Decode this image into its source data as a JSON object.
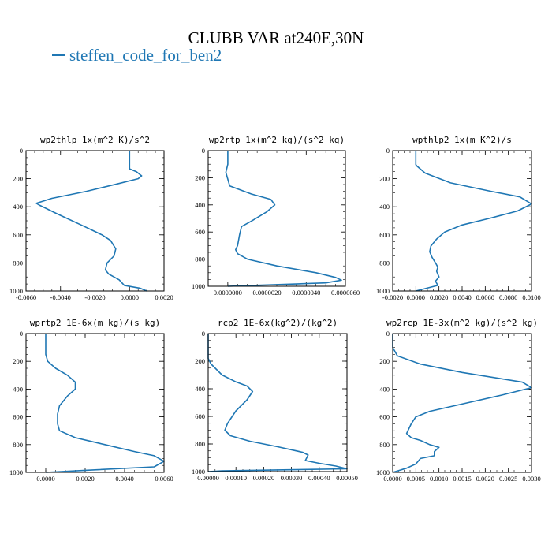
{
  "title": "CLUBB VAR at240E,30N",
  "legend_label": "steffen_code_for_ben2",
  "colors": {
    "line": "#1f77b4",
    "frame": "#000000"
  },
  "chart_data": [
    {
      "type": "line",
      "title": "wp2thlp   1x(m^2 K)/s^2",
      "xlim": [
        -0.006,
        0.002
      ],
      "ylim": [
        0,
        1000
      ],
      "xticks": [
        -0.006,
        -0.004,
        -0.002,
        0.0,
        0.002
      ],
      "xtick_labels": [
        "-0.0060",
        "-0.0040",
        "-0.0020",
        "0.0000",
        "0.0020"
      ],
      "yticks": [
        0,
        200,
        400,
        600,
        800,
        1000
      ],
      "ytick_labels": [
        "0",
        "200",
        "400",
        "600",
        "800",
        "1000"
      ],
      "x": [
        0.0,
        0.0,
        0.0,
        0.0,
        0.0004,
        0.0007,
        0.0005,
        -0.0008,
        -0.0025,
        -0.0045,
        -0.0054,
        -0.0052,
        -0.0042,
        -0.0028,
        -0.0016,
        -0.0011,
        -0.0008,
        -0.0009,
        -0.0013,
        -0.0014,
        -0.0012,
        -0.0006,
        -0.0003,
        0.0006,
        0.001
      ],
      "y": [
        0,
        50,
        100,
        130,
        150,
        180,
        200,
        240,
        290,
        340,
        375,
        390,
        450,
        530,
        600,
        640,
        700,
        750,
        800,
        850,
        880,
        920,
        960,
        980,
        1000
      ]
    },
    {
      "type": "line",
      "title": "wp2rtp   1x(m^2 kg)/(s^2 kg)",
      "xlim": [
        -1e-06,
        6e-06
      ],
      "ylim": [
        0,
        1000
      ],
      "xticks": [
        0.0,
        2e-06,
        4e-06,
        6e-06
      ],
      "xtick_labels": [
        "0.0000000",
        "0.0000020",
        "0.0000040",
        "0.0000060"
      ],
      "yticks": [
        0,
        200,
        400,
        600,
        800,
        1000
      ],
      "ytick_labels": [
        "0",
        "200",
        "400",
        "600",
        "800",
        "1000"
      ],
      "x": [
        0.0,
        0.0,
        0.0,
        -1e-07,
        1e-07,
        1.2e-06,
        2.2e-06,
        2.4e-06,
        2e-06,
        1.2e-06,
        7e-07,
        6e-07,
        5e-07,
        4e-07,
        5e-07,
        1e-06,
        2.5e-06,
        4.5e-06,
        5.5e-06,
        5.8e-06,
        5e-06,
        2e-06,
        0.0
      ],
      "y": [
        0,
        50,
        100,
        160,
        260,
        320,
        360,
        400,
        450,
        520,
        560,
        620,
        700,
        730,
        760,
        800,
        850,
        900,
        935,
        955,
        975,
        990,
        1000
      ]
    },
    {
      "type": "line",
      "title": "wpthlp2   1x(m K^2)/s",
      "xlim": [
        -0.002,
        0.01
      ],
      "ylim": [
        0,
        1000
      ],
      "xticks": [
        -0.002,
        0.0,
        0.002,
        0.004,
        0.006,
        0.008,
        0.01
      ],
      "xtick_labels": [
        "-0.0020",
        "0.0000",
        "0.0020",
        "0.0040",
        "0.0060",
        "0.0080",
        "0.0100"
      ],
      "yticks": [
        0,
        200,
        400,
        600,
        800,
        1000
      ],
      "ytick_labels": [
        "0",
        "200",
        "400",
        "600",
        "800",
        "1000"
      ],
      "x": [
        0.0,
        0.0,
        0.0,
        0.0001,
        0.0008,
        0.003,
        0.0065,
        0.009,
        0.01,
        0.0088,
        0.0065,
        0.004,
        0.0025,
        0.0018,
        0.0013,
        0.0012,
        0.0014,
        0.0017,
        0.0019,
        0.0018,
        0.002,
        0.0017,
        0.0019,
        0.0
      ],
      "y": [
        0,
        50,
        100,
        110,
        160,
        230,
        290,
        330,
        380,
        430,
        480,
        530,
        580,
        630,
        680,
        720,
        760,
        800,
        830,
        860,
        900,
        930,
        960,
        1000
      ]
    },
    {
      "type": "line",
      "title": "wprtp2   1E-6x(m kg)/(s kg)",
      "xlim": [
        -0.001,
        0.006
      ],
      "ylim": [
        0,
        1000
      ],
      "xticks": [
        0.0,
        0.002,
        0.004,
        0.006
      ],
      "xtick_labels": [
        "0.0000",
        "0.0020",
        "0.0040",
        "0.0060"
      ],
      "yticks": [
        0,
        200,
        400,
        600,
        800,
        1000
      ],
      "ytick_labels": [
        "0",
        "200",
        "400",
        "600",
        "800",
        "1000"
      ],
      "x": [
        0.0,
        0.0,
        0.0,
        0.0001,
        0.0005,
        0.0011,
        0.0015,
        0.0015,
        0.0011,
        0.0007,
        0.0006,
        0.0006,
        0.0007,
        0.0015,
        0.003,
        0.0045,
        0.0055,
        0.006,
        0.0055,
        0.002,
        0.0
      ],
      "y": [
        0,
        50,
        150,
        200,
        250,
        300,
        350,
        400,
        450,
        520,
        580,
        650,
        700,
        750,
        800,
        850,
        880,
        920,
        960,
        985,
        1000
      ]
    },
    {
      "type": "line",
      "title": "rcp2   1E-6x(kg^2)/(kg^2)",
      "xlim": [
        0.0,
        0.0005
      ],
      "ylim": [
        0,
        1000
      ],
      "xticks": [
        0.0,
        0.0001,
        0.0002,
        0.0003,
        0.0004,
        0.0005
      ],
      "xtick_labels": [
        "0.00000",
        "0.00010",
        "0.00020",
        "0.00030",
        "0.00040",
        "0.00050"
      ],
      "yticks": [
        0,
        200,
        400,
        600,
        800,
        1000
      ],
      "ytick_labels": [
        "0",
        "200",
        "400",
        "600",
        "800",
        "1000"
      ],
      "x": [
        0.0,
        0.0,
        0.0,
        1e-05,
        5e-05,
        0.0001,
        0.00014,
        0.00016,
        0.00014,
        0.0001,
        7e-05,
        6e-05,
        8e-05,
        0.00015,
        0.00025,
        0.00034,
        0.00036,
        0.00035,
        0.0004,
        0.00046,
        0.0005,
        5e-05,
        0.0
      ],
      "y": [
        0,
        100,
        180,
        220,
        300,
        350,
        380,
        420,
        480,
        560,
        650,
        700,
        740,
        780,
        820,
        860,
        880,
        920,
        940,
        960,
        980,
        995,
        1000
      ]
    },
    {
      "type": "line",
      "title": "wp2rcp   1E-3x(m^2 kg)/(s^2 kg)",
      "xlim": [
        0.0,
        0.003
      ],
      "ylim": [
        0,
        1000
      ],
      "xticks": [
        0.0,
        0.0005,
        0.001,
        0.0015,
        0.002,
        0.0025,
        0.003
      ],
      "xtick_labels": [
        "0.0000",
        "0.0005",
        "0.0010",
        "0.0015",
        "0.0020",
        "0.0025",
        "0.0030"
      ],
      "yticks": [
        0,
        200,
        400,
        600,
        800,
        1000
      ],
      "ytick_labels": [
        "0",
        "200",
        "400",
        "600",
        "800",
        "1000"
      ],
      "x": [
        0.0,
        0.0,
        0.0001,
        0.0006,
        0.0015,
        0.0028,
        0.003,
        0.0024,
        0.0016,
        0.0008,
        0.0005,
        0.0004,
        0.0003,
        0.0004,
        0.0006,
        0.0008,
        0.001,
        0.0009,
        0.0009,
        0.0006,
        0.0005,
        0.0003,
        0.0
      ],
      "y": [
        0,
        100,
        160,
        220,
        280,
        350,
        390,
        440,
        500,
        560,
        600,
        650,
        720,
        750,
        770,
        800,
        820,
        850,
        880,
        900,
        940,
        970,
        1000
      ]
    }
  ]
}
